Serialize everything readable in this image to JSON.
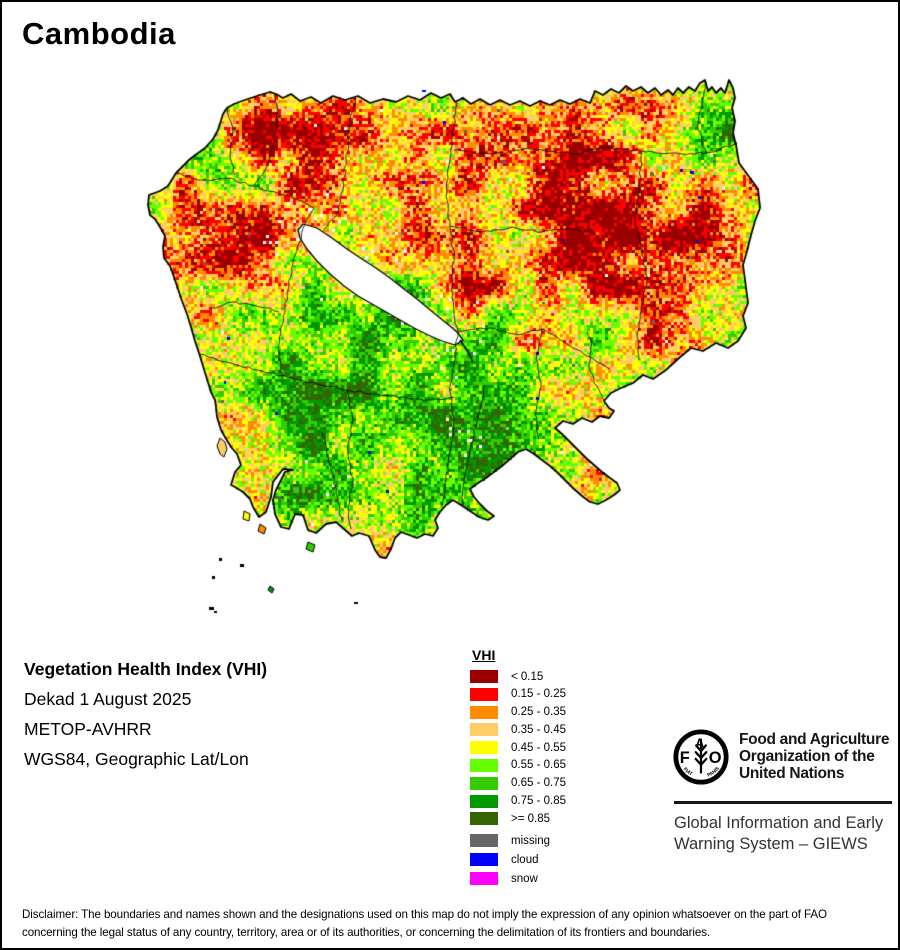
{
  "title": "Cambodia",
  "info": {
    "line1": "Vegetation Health Index (VHI)",
    "line2": "Dekad 1 August 2025",
    "line3": "METOP-AVHRR",
    "line4": "WGS84, Geographic Lat/Lon"
  },
  "legend": {
    "title": "VHI",
    "classes": [
      {
        "label": "< 0.15",
        "color": "#9b0000"
      },
      {
        "label": "0.15 - 0.25",
        "color": "#ff0000"
      },
      {
        "label": "0.25 - 0.35",
        "color": "#ff8c00"
      },
      {
        "label": "0.35 - 0.45",
        "color": "#ffcc66"
      },
      {
        "label": "0.45 - 0.55",
        "color": "#ffff00"
      },
      {
        "label": "0.55 - 0.65",
        "color": "#66ff00"
      },
      {
        "label": "0.65 - 0.75",
        "color": "#33cc00"
      },
      {
        "label": "0.75 - 0.85",
        "color": "#009900"
      },
      {
        "label": ">= 0.85",
        "color": "#336600"
      }
    ],
    "special": [
      {
        "label": "missing",
        "color": "#666666"
      },
      {
        "label": "cloud",
        "color": "#0000ff"
      },
      {
        "label": "snow",
        "color": "#ff00ff"
      }
    ]
  },
  "branding": {
    "fao_letters": {
      "f": "F",
      "a": "A",
      "o": "O"
    },
    "fao_motto": {
      "left": "FIAT",
      "right": "PANIS"
    },
    "org_line1": "Food and Agriculture",
    "org_line2": "Organization of the",
    "org_line3": "United Nations",
    "giews_line1": "Global Information and Early",
    "giews_line2": "Warning System – GIEWS"
  },
  "disclaimer": {
    "line1": "Disclaimer: The boundaries and names shown and the designations used on this map do not imply the expression of any opinion whatsoever on the part of FAO",
    "line2": "concerning the legal status of any country, territory, area or of its authorities, or concerning the delimitation of its frontiers and boundaries."
  }
}
